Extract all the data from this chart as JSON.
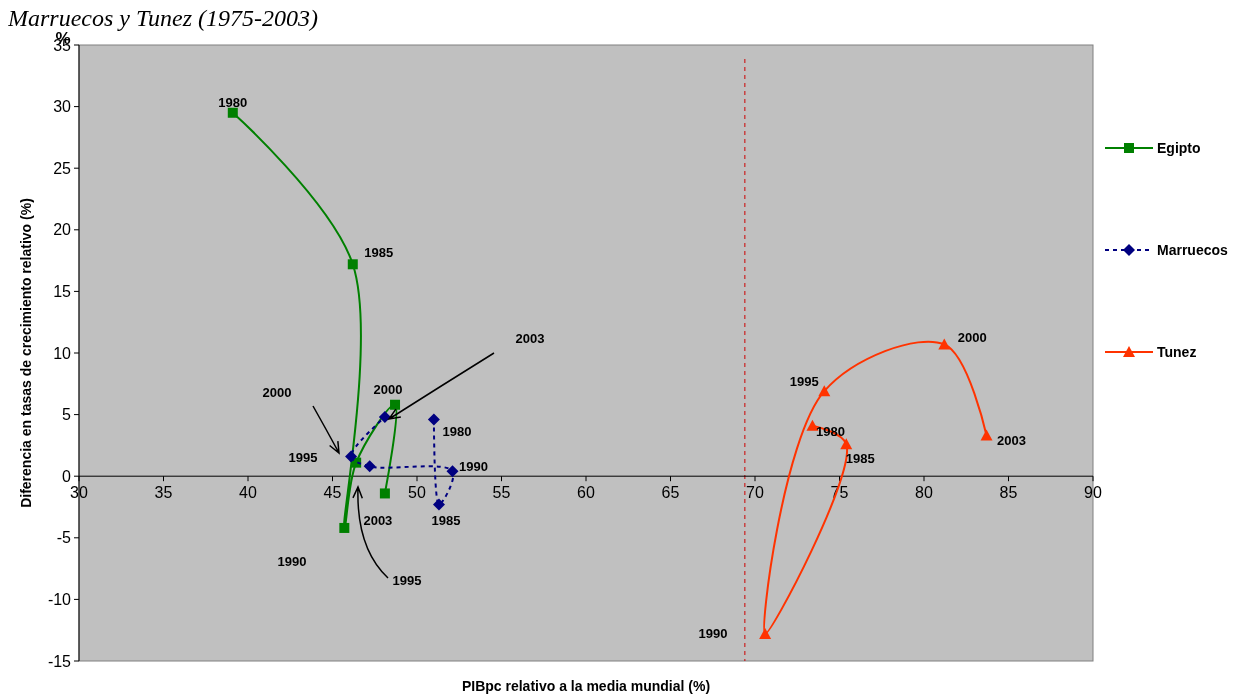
{
  "chart_data": {
    "type": "line",
    "title": "Marruecos y Tunez (1975-2003)",
    "xlabel": "PIBpc relativo a la media mundial (%)",
    "ylabel": "Diferencia en tasas de crecimiento relativo  (%)",
    "xlim": [
      30,
      90
    ],
    "xticks": [
      30,
      35,
      40,
      45,
      50,
      55,
      60,
      65,
      70,
      75,
      80,
      85,
      90
    ],
    "ylim": [
      -15,
      35
    ],
    "yticks": [
      -15,
      -10,
      -5,
      0,
      5,
      10,
      15,
      20,
      25,
      30,
      35
    ],
    "series": [
      {
        "name": "Egipto",
        "color": "#008000",
        "marker": "square",
        "line_style": "solid",
        "x": [
          39.1,
          46.2,
          45.7,
          46.4,
          48.7,
          48.1
        ],
        "values": [
          29.5,
          17.2,
          -4.2,
          1.1,
          5.8,
          -1.4
        ]
      },
      {
        "name": "Marruecos",
        "color": "#000080",
        "marker": "diamond",
        "line_style": "dashed",
        "x": [
          51.0,
          51.3,
          52.1,
          47.2,
          46.1,
          48.1
        ],
        "values": [
          4.6,
          -2.3,
          0.4,
          0.8,
          1.6,
          4.8
        ]
      },
      {
        "name": "Tunez",
        "color": "#ff3300",
        "marker": "triangle",
        "line_style": "solid",
        "x": [
          73.4,
          75.4,
          70.6,
          74.1,
          81.2,
          83.7
        ],
        "values": [
          4.1,
          2.6,
          -12.8,
          6.9,
          10.7,
          3.3
        ]
      }
    ],
    "ref_lines": [
      {
        "axis": "x",
        "value": 69.4,
        "color": "#cc0000",
        "line_style": "dashed"
      }
    ],
    "legend": "right",
    "grid": false,
    "annotations": [
      "%",
      {
        "text": "1980",
        "x": 39.1,
        "y": 29.5
      },
      {
        "text": "1985",
        "x": 46.2,
        "y": 17.2
      },
      "1990",
      "1995",
      {
        "text": "2000",
        "x": 48.7,
        "y": 5.8
      },
      {
        "text": "2003",
        "x": 48.1,
        "y": -1.4
      },
      {
        "text": "1980",
        "x": 51.0,
        "y": 4.6
      },
      {
        "text": "1985",
        "x": 51.3,
        "y": -2.3
      },
      {
        "text": "1990",
        "x": 52.1,
        "y": 0.4
      },
      "1995",
      "2000",
      "2003",
      {
        "text": "1980",
        "x": 73.4,
        "y": 4.1
      },
      {
        "text": "1985",
        "x": 75.4,
        "y": 2.6
      },
      "1990",
      {
        "text": "1995",
        "x": 74.1,
        "y": 6.9
      },
      {
        "text": "2000",
        "x": 81.2,
        "y": 10.7
      },
      {
        "text": "2003",
        "x": 83.7,
        "y": 3.3
      }
    ]
  }
}
